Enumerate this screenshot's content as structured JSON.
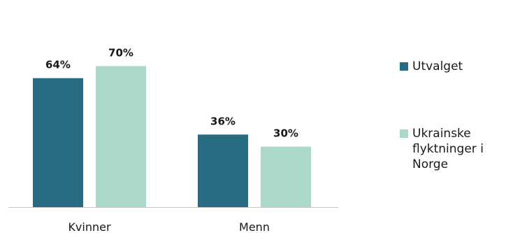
{
  "chart_data": {
    "type": "bar",
    "categories": [
      "Kvinner",
      "Menn"
    ],
    "series": [
      {
        "name": "Utvalget",
        "values": [
          64,
          36
        ],
        "labels": [
          "64%",
          "36%"
        ],
        "color": "#286C84"
      },
      {
        "name": "Ukrainske flyktninger i Norge",
        "values": [
          70,
          30
        ],
        "labels": [
          "70%",
          "30%"
        ],
        "color": "#ACD8CB"
      }
    ],
    "title": "",
    "xlabel": "",
    "ylabel": "",
    "ylim": [
      0,
      100
    ],
    "grid": false,
    "legend_position": "right",
    "axis_color": "#c8c8c8"
  }
}
